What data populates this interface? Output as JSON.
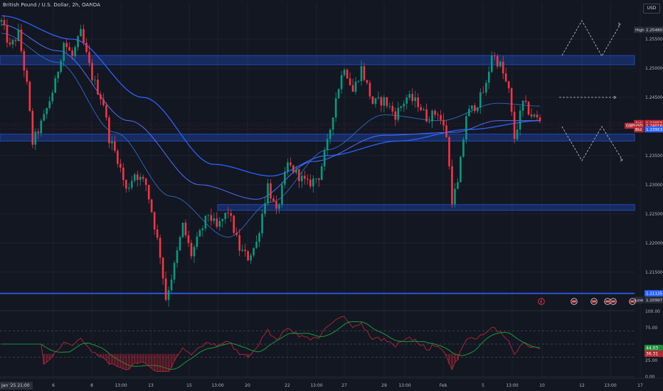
{
  "header": {
    "title": "British Pound / U.S. Dollar, 2h, OANDA",
    "currency_button": "USD",
    "bottom_date_label": "Jan '25  21:00"
  },
  "colors": {
    "background": "#131722",
    "up_candle": "#089981",
    "down_candle": "#f23645",
    "ma": "#2962ff",
    "zone": "#2962ff",
    "rsi_line": "#b22833",
    "rsi_signal": "#1e8c3a"
  },
  "chart_data": [
    {
      "type": "candlestick",
      "title": "British Pound / U.S. Dollar, 2h, OANDA",
      "ylim": [
        1.2085,
        1.2605
      ],
      "y_ticks": [
        "1.25500",
        "1.25000",
        "1.24500",
        "1.23500",
        "1.23000",
        "1.22500",
        "1.22000",
        "1.21500"
      ],
      "x_ticks": [
        "6",
        "8",
        "13:00",
        "13",
        "15",
        "13:00",
        "20",
        "22",
        "13:00",
        "27",
        "29",
        "13:00",
        "Feb",
        "5",
        "13:00",
        "10",
        "12",
        "13:00",
        "17"
      ],
      "price_labels": {
        "high_tag": "High",
        "high_value": "1.25480",
        "ask_tag": "Ask",
        "ask_value": "1.24050",
        "symbol_tag": "GBPUSD",
        "last_value": "1.24016",
        "bid_tag": "Bid",
        "bid_value": "1.23953",
        "level_value": "1.21135",
        "low_tag": "Low",
        "low_value": "1.20997"
      },
      "zones": [
        {
          "from": 1.2506,
          "to": 1.2522
        },
        {
          "from": 1.2375,
          "to": 1.2387
        },
        {
          "from": 1.2256,
          "to": 1.2266
        }
      ],
      "levels": [
        1.21135
      ],
      "waypoints": [
        [
          0,
          1.258
        ],
        [
          3,
          1.2535
        ],
        [
          6,
          1.256
        ],
        [
          9,
          1.247
        ],
        [
          11,
          1.2372
        ],
        [
          15,
          1.2415
        ],
        [
          19,
          1.2475
        ],
        [
          22,
          1.2545
        ],
        [
          25,
          1.252
        ],
        [
          28,
          1.256
        ],
        [
          32,
          1.2485
        ],
        [
          36,
          1.244
        ],
        [
          38,
          1.238
        ],
        [
          41,
          1.2345
        ],
        [
          44,
          1.229
        ],
        [
          47,
          1.232
        ],
        [
          51,
          1.23
        ],
        [
          53,
          1.2255
        ],
        [
          56,
          1.218
        ],
        [
          58,
          1.2105
        ],
        [
          61,
          1.216
        ],
        [
          64,
          1.223
        ],
        [
          67,
          1.218
        ],
        [
          70,
          1.2215
        ],
        [
          73,
          1.225
        ],
        [
          76,
          1.2225
        ],
        [
          80,
          1.2255
        ],
        [
          84,
          1.219
        ],
        [
          87,
          1.2175
        ],
        [
          90,
          1.22
        ],
        [
          94,
          1.23
        ],
        [
          97,
          1.225
        ],
        [
          101,
          1.2335
        ],
        [
          104,
          1.232
        ],
        [
          108,
          1.23
        ],
        [
          112,
          1.2315
        ],
        [
          115,
          1.237
        ],
        [
          118,
          1.245
        ],
        [
          121,
          1.2505
        ],
        [
          124,
          1.246
        ],
        [
          127,
          1.25
        ],
        [
          131,
          1.244
        ],
        [
          135,
          1.2445
        ],
        [
          139,
          1.242
        ],
        [
          143,
          1.245
        ],
        [
          147,
          1.244
        ],
        [
          150,
          1.2415
        ],
        [
          154,
          1.2425
        ],
        [
          157,
          1.2385
        ],
        [
          159,
          1.2275
        ],
        [
          161,
          1.23
        ],
        [
          164,
          1.242
        ],
        [
          168,
          1.244
        ],
        [
          171,
          1.247
        ],
        [
          173,
          1.2525
        ],
        [
          176,
          1.2505
        ],
        [
          179,
          1.246
        ],
        [
          181,
          1.238
        ],
        [
          184,
          1.244
        ],
        [
          187,
          1.242
        ],
        [
          190,
          1.241
        ]
      ],
      "moving_averages": [
        {
          "points": [
            [
              0,
              1.259
            ],
            [
              25,
              1.255
            ],
            [
              50,
              1.245
            ],
            [
              75,
              1.2335
            ],
            [
              95,
              1.2315
            ],
            [
              115,
              1.235
            ],
            [
              140,
              1.2375
            ],
            [
              165,
              1.2395
            ],
            [
              190,
              1.241
            ]
          ]
        },
        {
          "points": [
            [
              0,
              1.2575
            ],
            [
              20,
              1.253
            ],
            [
              45,
              1.241
            ],
            [
              70,
              1.23
            ],
            [
              90,
              1.2275
            ],
            [
              110,
              1.234
            ],
            [
              135,
              1.2385
            ],
            [
              160,
              1.239
            ],
            [
              175,
              1.241
            ],
            [
              190,
              1.241
            ]
          ]
        },
        {
          "points": [
            [
              0,
              1.256
            ],
            [
              20,
              1.251
            ],
            [
              40,
              1.239
            ],
            [
              60,
              1.228
            ],
            [
              80,
              1.221
            ],
            [
              95,
              1.227
            ],
            [
              115,
              1.236
            ],
            [
              135,
              1.242
            ],
            [
              155,
              1.241
            ],
            [
              175,
              1.244
            ],
            [
              190,
              1.2435
            ]
          ]
        }
      ],
      "projection": {
        "up_path": [
          [
            790,
            78
          ],
          [
            818,
            29
          ],
          [
            846,
            79
          ],
          [
            872,
            34
          ]
        ],
        "mid_line": {
          "x1": 786,
          "x2": 866,
          "price": 1.245
        },
        "down_path": [
          [
            790,
            178
          ],
          [
            818,
            226
          ],
          [
            846,
            178
          ],
          [
            875,
            225
          ]
        ]
      },
      "event_icons": 6
    },
    {
      "type": "line",
      "title": "",
      "ylim": [
        0,
        100
      ],
      "y_ticks": [
        "100.00",
        "75.00",
        "25.00",
        "0.00"
      ],
      "levels": [
        70,
        50,
        30
      ],
      "labels": {
        "signal_value": "44.03",
        "rsi_value": "36.31"
      },
      "signal_current": 44.03,
      "rsi_current": 36.31
    }
  ]
}
